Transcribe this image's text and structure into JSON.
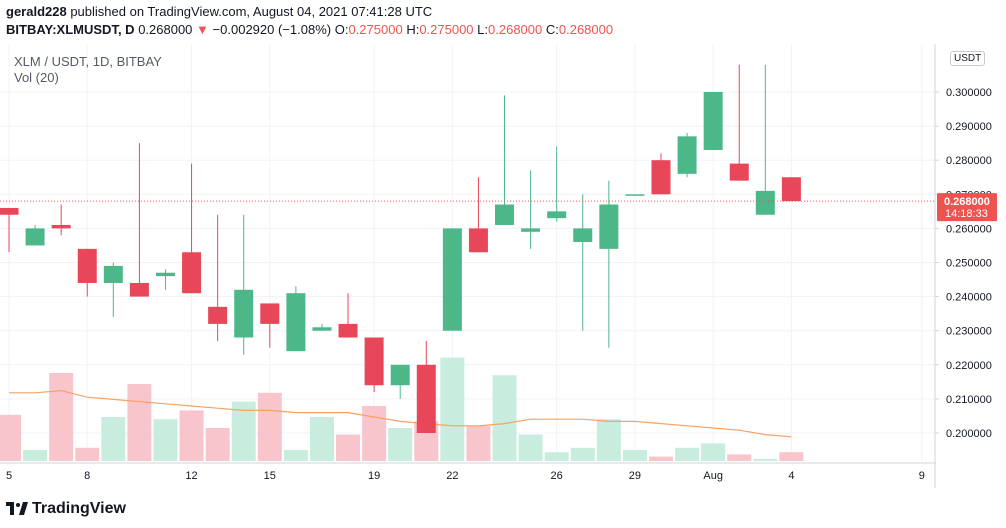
{
  "header": {
    "publisher": "gerald228",
    "published_text": "published on TradingView.com, August 04, 2021 07:41:28 UTC",
    "symbol": "BITBAY:XLMUSDT, D",
    "last_price": "0.268000",
    "change": "−0.002920 (−1.08%)",
    "open_label": "O:",
    "open": "0.275000",
    "high_label": "H:",
    "high": "0.275000",
    "low_label": "L:",
    "low": "0.268000",
    "close_label": "C:",
    "close": "0.268000"
  },
  "legend": {
    "title": "XLM / USDT, 1D, BITBAY",
    "volume": "Vol (20)"
  },
  "price_scale": {
    "currency_button": "USDT",
    "ticks": [
      "0.300000",
      "0.290000",
      "0.280000",
      "0.270000",
      "0.260000",
      "0.250000",
      "0.240000",
      "0.230000",
      "0.220000",
      "0.210000",
      "0.200000"
    ],
    "last_price_tag": "0.268000",
    "countdown": "14:18:33"
  },
  "time_scale": {
    "labels": [
      {
        "text": "5",
        "day": 5
      },
      {
        "text": "8",
        "day": 8
      },
      {
        "text": "12",
        "day": 12
      },
      {
        "text": "15",
        "day": 15
      },
      {
        "text": "19",
        "day": 19
      },
      {
        "text": "22",
        "day": 22
      },
      {
        "text": "26",
        "day": 26
      },
      {
        "text": "29",
        "day": 29
      },
      {
        "text": "Aug",
        "day": 32
      },
      {
        "text": "4",
        "day": 35
      },
      {
        "text": "9",
        "day": 40
      }
    ]
  },
  "colors": {
    "up": "#26a69a",
    "up_body": "#4cb88a",
    "down": "#ef5350",
    "down_body": "#e8475a",
    "vol_up": "#c8ecde",
    "vol_down": "#f8c5cc",
    "ma": "#f6a263"
  },
  "chart_data": {
    "type": "candlestick",
    "title": "XLM / USDT, 1D, BITBAY",
    "ylim": [
      0.195,
      0.315
    ],
    "candles": [
      {
        "day": 5,
        "o": 0.266,
        "h": 0.266,
        "l": 0.253,
        "c": 0.264
      },
      {
        "day": 6,
        "o": 0.255,
        "h": 0.261,
        "l": 0.255,
        "c": 0.26
      },
      {
        "day": 7,
        "o": 0.261,
        "h": 0.267,
        "l": 0.258,
        "c": 0.26
      },
      {
        "day": 8,
        "o": 0.254,
        "h": 0.254,
        "l": 0.24,
        "c": 0.244
      },
      {
        "day": 9,
        "o": 0.244,
        "h": 0.25,
        "l": 0.234,
        "c": 0.249
      },
      {
        "day": 10,
        "o": 0.244,
        "h": 0.285,
        "l": 0.24,
        "c": 0.24
      },
      {
        "day": 11,
        "o": 0.246,
        "h": 0.248,
        "l": 0.242,
        "c": 0.247
      },
      {
        "day": 12,
        "o": 0.253,
        "h": 0.279,
        "l": 0.241,
        "c": 0.241
      },
      {
        "day": 13,
        "o": 0.237,
        "h": 0.264,
        "l": 0.227,
        "c": 0.232
      },
      {
        "day": 14,
        "o": 0.228,
        "h": 0.264,
        "l": 0.223,
        "c": 0.242
      },
      {
        "day": 15,
        "o": 0.238,
        "h": 0.238,
        "l": 0.225,
        "c": 0.232
      },
      {
        "day": 16,
        "o": 0.224,
        "h": 0.243,
        "l": 0.224,
        "c": 0.241
      },
      {
        "day": 17,
        "o": 0.23,
        "h": 0.232,
        "l": 0.23,
        "c": 0.231
      },
      {
        "day": 18,
        "o": 0.232,
        "h": 0.241,
        "l": 0.228,
        "c": 0.228
      },
      {
        "day": 19,
        "o": 0.228,
        "h": 0.228,
        "l": 0.212,
        "c": 0.214
      },
      {
        "day": 20,
        "o": 0.214,
        "h": 0.22,
        "l": 0.21,
        "c": 0.22
      },
      {
        "day": 21,
        "o": 0.22,
        "h": 0.227,
        "l": 0.2,
        "c": 0.2
      },
      {
        "day": 22,
        "o": 0.23,
        "h": 0.26,
        "l": 0.23,
        "c": 0.26
      },
      {
        "day": 23,
        "o": 0.26,
        "h": 0.275,
        "l": 0.254,
        "c": 0.253
      },
      {
        "day": 24,
        "o": 0.261,
        "h": 0.299,
        "l": 0.261,
        "c": 0.267
      },
      {
        "day": 25,
        "o": 0.259,
        "h": 0.277,
        "l": 0.254,
        "c": 0.26
      },
      {
        "day": 26,
        "o": 0.263,
        "h": 0.284,
        "l": 0.262,
        "c": 0.265
      },
      {
        "day": 27,
        "o": 0.256,
        "h": 0.27,
        "l": 0.23,
        "c": 0.26
      },
      {
        "day": 28,
        "o": 0.254,
        "h": 0.274,
        "l": 0.225,
        "c": 0.267
      },
      {
        "day": 29,
        "o": 0.27,
        "h": 0.27,
        "l": 0.27,
        "c": 0.27
      },
      {
        "day": 30,
        "o": 0.28,
        "h": 0.282,
        "l": 0.27,
        "c": 0.27
      },
      {
        "day": 31,
        "o": 0.276,
        "h": 0.288,
        "l": 0.275,
        "c": 0.287
      },
      {
        "day": 32,
        "o": 0.283,
        "h": 0.3,
        "l": 0.283,
        "c": 0.3
      },
      {
        "day": 33,
        "o": 0.279,
        "h": 0.308,
        "l": 0.274,
        "c": 0.274
      },
      {
        "day": 34,
        "o": 0.264,
        "h": 0.308,
        "l": 0.264,
        "c": 0.271
      },
      {
        "day": 35,
        "o": 0.275,
        "h": 0.275,
        "l": 0.268,
        "c": 0.268
      }
    ],
    "volume_series": {
      "name": "Vol (20)",
      "values": [
        0.21,
        0.05,
        0.4,
        0.06,
        0.2,
        0.35,
        0.19,
        0.23,
        0.15,
        0.27,
        0.31,
        0.05,
        0.2,
        0.12,
        0.25,
        0.15,
        0.18,
        0.47,
        0.16,
        0.39,
        0.12,
        0.04,
        0.06,
        0.19,
        0.05,
        0.02,
        0.06,
        0.08,
        0.03,
        0.01,
        0.04
      ],
      "ma": [
        0.31,
        0.31,
        0.32,
        0.29,
        0.28,
        0.27,
        0.26,
        0.25,
        0.24,
        0.23,
        0.23,
        0.22,
        0.22,
        0.22,
        0.2,
        0.18,
        0.17,
        0.16,
        0.16,
        0.17,
        0.19,
        0.19,
        0.19,
        0.18,
        0.18,
        0.17,
        0.16,
        0.15,
        0.14,
        0.12,
        0.11
      ]
    }
  }
}
